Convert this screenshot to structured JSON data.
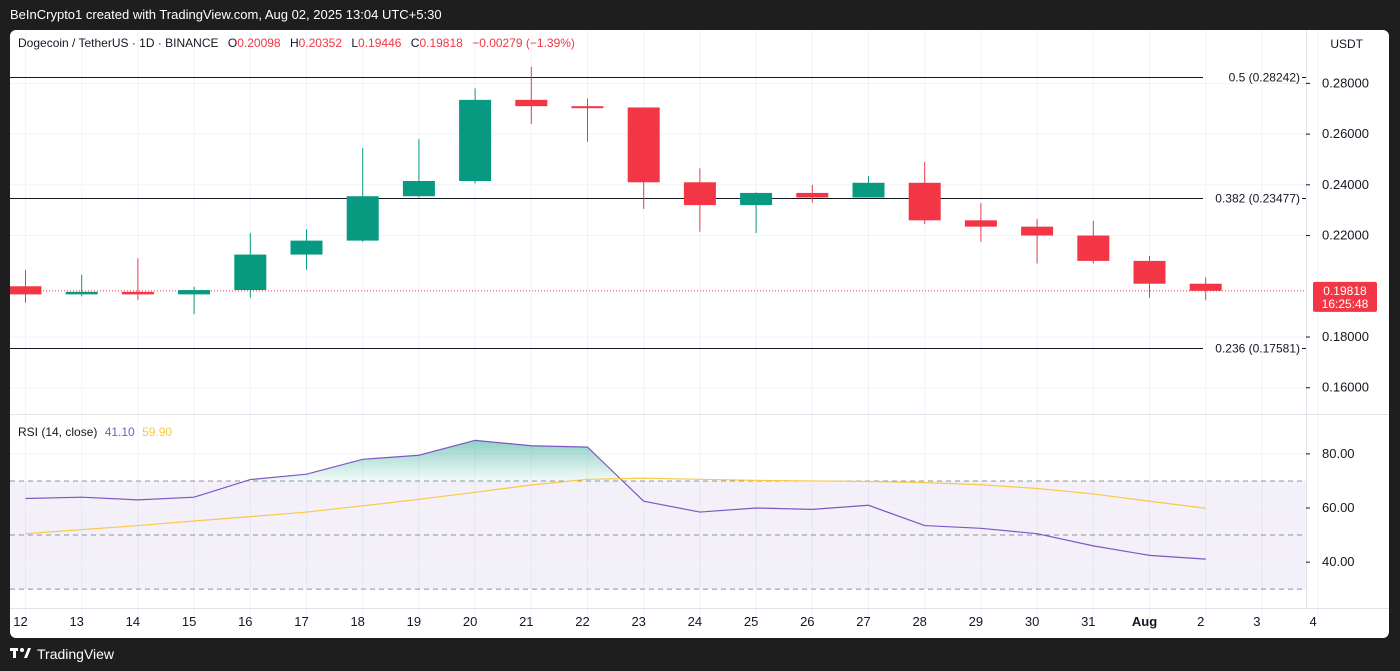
{
  "header": {
    "title": "BeInCrypto1 created with TradingView.com, Aug 02, 2025 13:04 UTC+5:30"
  },
  "legend": {
    "symbol": "Dogecoin / TetherUS · 1D · BINANCE",
    "o_label": "O",
    "o": "0.20098",
    "h_label": "H",
    "h": "0.20352",
    "l_label": "L",
    "l": "0.19446",
    "c_label": "C",
    "c": "0.19818",
    "change": "−0.00279 (−1.39%)"
  },
  "currency": "USDT",
  "price_tag": {
    "price": "0.19818",
    "countdown": "16:25:48",
    "color": "#f23645"
  },
  "rsi_legend": {
    "label": "RSI (14, close)",
    "rsi": "41.10",
    "ma": "59.90"
  },
  "footer": {
    "brand": "TradingView",
    "logo": "tradingview-logo-icon"
  },
  "colors": {
    "up": "#089981",
    "down": "#f23645",
    "rsi": "#7e57c2",
    "rsi_ma": "#f7c948"
  },
  "chart_data": [
    {
      "type": "candlestick",
      "title": "Dogecoin / TetherUS · 1D · BINANCE",
      "x_tick_labels": [
        "12",
        "13",
        "14",
        "15",
        "16",
        "17",
        "18",
        "19",
        "20",
        "21",
        "22",
        "23",
        "24",
        "25",
        "26",
        "27",
        "28",
        "29",
        "30",
        "31",
        "Aug",
        "2",
        "3",
        "4"
      ],
      "ylim": [
        0.152,
        0.29
      ],
      "y_ticks": [
        0.16,
        0.18,
        0.22,
        0.24,
        0.26,
        0.28
      ],
      "y_tick_labels": [
        "0.16000",
        "0.18000",
        "0.22000",
        "0.24000",
        "0.26000",
        "0.28000"
      ],
      "grid": true,
      "candles": [
        {
          "day": "12",
          "o": 0.2,
          "h": 0.2065,
          "l": 0.1935,
          "c": 0.1968
        },
        {
          "day": "13",
          "o": 0.1968,
          "h": 0.2045,
          "l": 0.196,
          "c": 0.1978
        },
        {
          "day": "14",
          "o": 0.1978,
          "h": 0.211,
          "l": 0.1945,
          "c": 0.1968
        },
        {
          "day": "15",
          "o": 0.1968,
          "h": 0.1998,
          "l": 0.189,
          "c": 0.1985
        },
        {
          "day": "16",
          "o": 0.1985,
          "h": 0.221,
          "l": 0.1955,
          "c": 0.2125
        },
        {
          "day": "17",
          "o": 0.2125,
          "h": 0.2225,
          "l": 0.2065,
          "c": 0.218
        },
        {
          "day": "18",
          "o": 0.218,
          "h": 0.2545,
          "l": 0.2175,
          "c": 0.2355
        },
        {
          "day": "19",
          "o": 0.2355,
          "h": 0.258,
          "l": 0.235,
          "c": 0.2415
        },
        {
          "day": "20",
          "o": 0.2415,
          "h": 0.278,
          "l": 0.2405,
          "c": 0.2735
        },
        {
          "day": "21",
          "o": 0.2735,
          "h": 0.2865,
          "l": 0.264,
          "c": 0.271
        },
        {
          "day": "22",
          "o": 0.271,
          "h": 0.274,
          "l": 0.257,
          "c": 0.2705
        },
        {
          "day": "23",
          "o": 0.2705,
          "h": 0.2705,
          "l": 0.2305,
          "c": 0.241
        },
        {
          "day": "24",
          "o": 0.241,
          "h": 0.2465,
          "l": 0.2215,
          "c": 0.232
        },
        {
          "day": "25",
          "o": 0.232,
          "h": 0.237,
          "l": 0.221,
          "c": 0.2368
        },
        {
          "day": "26",
          "o": 0.2368,
          "h": 0.24,
          "l": 0.233,
          "c": 0.235
        },
        {
          "day": "27",
          "o": 0.235,
          "h": 0.2435,
          "l": 0.235,
          "c": 0.2408
        },
        {
          "day": "28",
          "o": 0.2408,
          "h": 0.249,
          "l": 0.2245,
          "c": 0.226
        },
        {
          "day": "29",
          "o": 0.226,
          "h": 0.2328,
          "l": 0.2175,
          "c": 0.2235
        },
        {
          "day": "30",
          "o": 0.2235,
          "h": 0.2265,
          "l": 0.209,
          "c": 0.22
        },
        {
          "day": "31",
          "o": 0.22,
          "h": 0.2258,
          "l": 0.209,
          "c": 0.21
        },
        {
          "day": "Aug",
          "o": 0.21,
          "h": 0.212,
          "l": 0.1955,
          "c": 0.201
        },
        {
          "day": "2",
          "o": 0.201,
          "h": 0.2035,
          "l": 0.1945,
          "c": 0.1982
        }
      ],
      "current_price": 0.19818,
      "fib_levels": [
        {
          "label": "0.5 (0.28242)",
          "value": 0.28242
        },
        {
          "label": "0.382 (0.23477)",
          "value": 0.23477
        },
        {
          "label": "0.236 (0.17581)",
          "value": 0.17581
        }
      ]
    },
    {
      "type": "line",
      "title": "RSI (14, close)",
      "x_tick_labels": [
        "12",
        "13",
        "14",
        "15",
        "16",
        "17",
        "18",
        "19",
        "20",
        "21",
        "22",
        "23",
        "24",
        "25",
        "26",
        "27",
        "28",
        "29",
        "30",
        "31",
        "Aug",
        "2",
        "3",
        "4"
      ],
      "ylim": [
        26,
        94
      ],
      "y_ticks": [
        40,
        60,
        80
      ],
      "y_tick_labels": [
        "40.00",
        "60.00",
        "80.00"
      ],
      "bands": {
        "upper": 70,
        "middle": 50,
        "lower": 30
      },
      "series": [
        {
          "name": "RSI",
          "color": "#7e57c2",
          "values": [
            63.5,
            64,
            63,
            64,
            70.5,
            72.5,
            78,
            79.5,
            85,
            83,
            82.5,
            62.5,
            58.5,
            60,
            59.5,
            61,
            53.5,
            52.5,
            50.5,
            46,
            42.5,
            41.1
          ]
        },
        {
          "name": "RSI-based MA",
          "color": "#f7c948",
          "values": [
            50.5,
            52,
            53.5,
            55.2,
            56.8,
            58.5,
            60.8,
            63.2,
            65.8,
            68.5,
            70.6,
            71,
            70.6,
            70.2,
            70,
            69.8,
            69.4,
            68.6,
            67.2,
            65.2,
            62.5,
            59.9
          ]
        }
      ]
    }
  ]
}
